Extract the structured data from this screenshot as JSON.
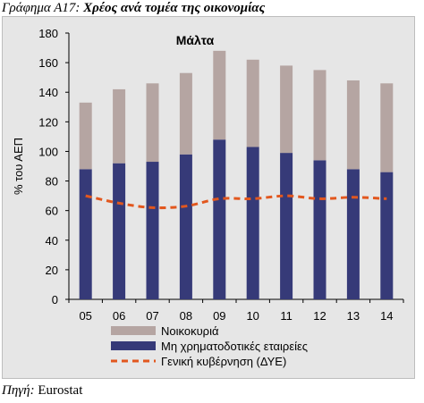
{
  "caption": {
    "prefix": "Γράφημα Α17:",
    "title": "Χρέος ανά τομέα της οικονομίας"
  },
  "source": {
    "label": "Πηγή:",
    "value": "Eurostat"
  },
  "chart_data": {
    "type": "bar",
    "stacked": true,
    "title": "Μάλτα",
    "ylabel": "% του ΑΕΠ",
    "xlabel": "",
    "categories": [
      "05",
      "06",
      "07",
      "08",
      "09",
      "10",
      "11",
      "12",
      "13",
      "14"
    ],
    "ylim": [
      0,
      180
    ],
    "yticks": [
      0,
      20,
      40,
      60,
      80,
      100,
      120,
      140,
      160,
      180
    ],
    "grid": false,
    "legend_position": "bottom",
    "series": [
      {
        "name": "Μη χρηματοδοτικές εταιρείες",
        "kind": "bar",
        "color": "#363a78",
        "values": [
          88,
          92,
          93,
          98,
          108,
          103,
          99,
          94,
          88,
          86
        ]
      },
      {
        "name": "Νοικοκυριά",
        "kind": "bar",
        "color": "#b5a5a2",
        "values": [
          45,
          50,
          53,
          55,
          60,
          59,
          59,
          61,
          60,
          60
        ]
      },
      {
        "name": "Γενική κυβέρνηση (ΔΥΕ)",
        "kind": "line",
        "style": "dashed",
        "color": "#e2571e",
        "values": [
          70,
          65,
          62,
          63,
          68,
          68,
          70,
          68,
          69,
          68
        ]
      }
    ],
    "legend_order": [
      "Νοικοκυριά",
      "Μη χρηματοδοτικές εταιρείες",
      "Γενική κυβέρνηση (ΔΥΕ)"
    ]
  }
}
